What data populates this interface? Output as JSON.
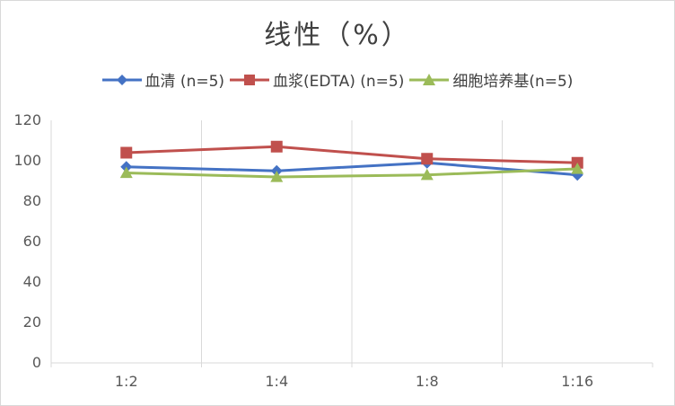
{
  "chart_data": {
    "type": "line",
    "title": "线性（%）",
    "categories": [
      "1:2",
      "1:4",
      "1:8",
      "1:16"
    ],
    "ylim": [
      0,
      120
    ],
    "yticks": [
      0,
      20,
      40,
      60,
      80,
      100,
      120
    ],
    "grid": "vertical",
    "legend_position": "top",
    "series": [
      {
        "name": "血清 (n=5)",
        "color": "#4472C4",
        "marker": "diamond",
        "values": [
          97,
          95,
          99,
          93
        ]
      },
      {
        "name": "血浆(EDTA) (n=5)",
        "color": "#C0504D",
        "marker": "square",
        "values": [
          104,
          107,
          101,
          99
        ]
      },
      {
        "name": "细胞培养基(n=5)",
        "color": "#9BBB59",
        "marker": "triangle",
        "values": [
          94,
          92,
          93,
          96
        ]
      }
    ]
  }
}
